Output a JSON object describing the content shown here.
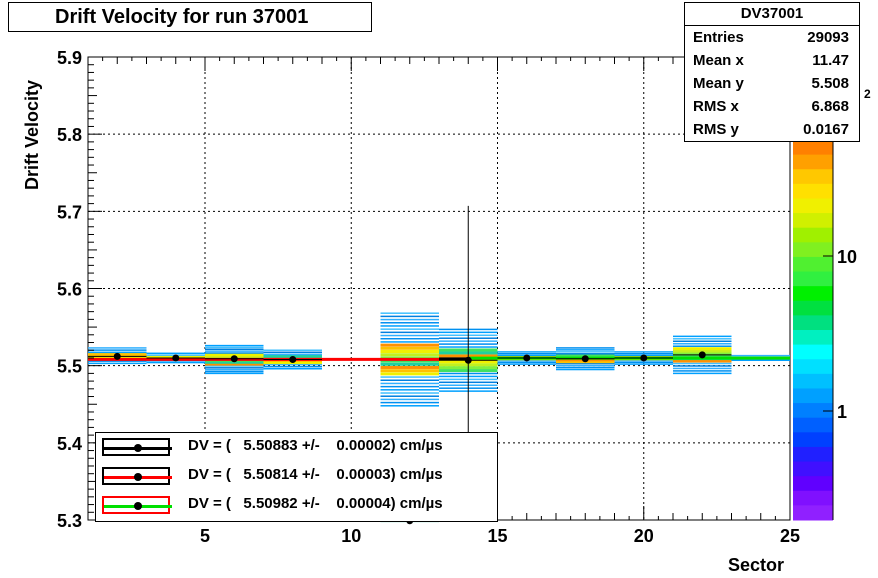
{
  "chart_data": {
    "type": "heatmap",
    "title": "Drift Velocity for run 37001",
    "xlabel": "Sector",
    "ylabel": "Drift Velocity",
    "xlim": [
      1,
      25
    ],
    "ylim": [
      5.3,
      5.9
    ],
    "x_ticks": [
      "5",
      "10",
      "15",
      "20",
      "25"
    ],
    "y_ticks": [
      "5.3",
      "5.4",
      "5.5",
      "5.6",
      "5.7",
      "5.8",
      "5.9"
    ],
    "grid": true,
    "color_scale": "log",
    "colorbar_ticks": [
      "1",
      "10"
    ],
    "colorbar_exponent": "2",
    "stats": {
      "name": "DV37001",
      "rows": [
        {
          "label": "Entries",
          "value": "29093"
        },
        {
          "label": "Mean x",
          "value": "11.47"
        },
        {
          "label": "Mean y",
          "value": "5.508"
        },
        {
          "label": "RMS x",
          "value": "6.868"
        },
        {
          "label": "RMS y",
          "value": "0.0167"
        }
      ]
    },
    "points": [
      {
        "x": 2,
        "y": 5.512
      },
      {
        "x": 4,
        "y": 5.51
      },
      {
        "x": 6,
        "y": 5.509
      },
      {
        "x": 8,
        "y": 5.508
      },
      {
        "x": 12,
        "y": 5.299
      },
      {
        "x": 14,
        "y": 5.507
      },
      {
        "x": 16,
        "y": 5.51
      },
      {
        "x": 18,
        "y": 5.509
      },
      {
        "x": 20,
        "y": 5.51
      },
      {
        "x": 22,
        "y": 5.514
      }
    ],
    "fits": [
      {
        "color": "#000000",
        "y": 5.50883,
        "x": [
          13,
          14
        ]
      },
      {
        "color": "#ff0000",
        "y": 5.50814,
        "x": [
          1,
          13
        ]
      },
      {
        "color": "#00e000",
        "y": 5.50982,
        "x": [
          14,
          25
        ]
      }
    ],
    "legend": [
      {
        "text": "DV = (   5.50883 +/-    0.00002) cm/",
        "line_color": "#000000",
        "box_color": "#000000"
      },
      {
        "text": "DV = (   5.50814 +/-    0.00003) cm/",
        "line_color": "#ff0000",
        "box_color": "#000000"
      },
      {
        "text": "DV = (   5.50982 +/-    0.00004) cm/",
        "line_color": "#00e000",
        "box_color": "#ff0000"
      }
    ],
    "legend_suffix": "µs"
  }
}
